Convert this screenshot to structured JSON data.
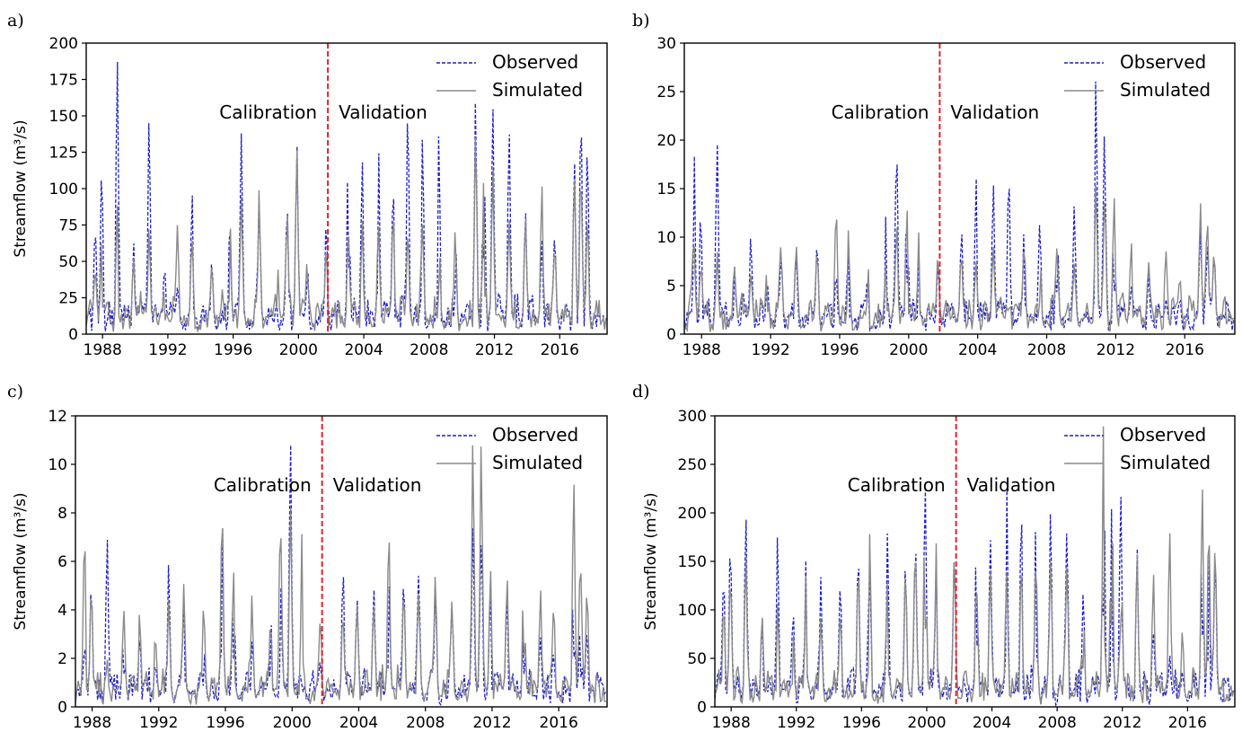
{
  "colors": {
    "observed": "#1f1fc8",
    "simulated": "#8a8a8a",
    "split_line": "#e8202a",
    "axis": "#000000"
  },
  "chart_data": [
    {
      "type": "line",
      "panel_label": "a)",
      "ylabel": "Streamflow (m³/s)",
      "xlim": [
        1987.0,
        2018.9
      ],
      "ylim": [
        0,
        200
      ],
      "yticks": [
        0,
        25,
        50,
        75,
        100,
        125,
        150,
        175,
        200
      ],
      "xticks": [
        1988,
        1992,
        1996,
        2000,
        2004,
        2008,
        2012,
        2016
      ],
      "split_year": 2001.8,
      "annotations": [
        "Calibration",
        "Validation"
      ],
      "legend_position": "top-right",
      "series": [
        {
          "name": "Observed",
          "style": "dashed",
          "color": "#1f1fc8",
          "peak_years": [
            1987.55,
            1987.95,
            1988.9,
            1989.9,
            1990.85,
            1991.8,
            1992.6,
            1993.5,
            1994.7,
            1995.8,
            1996.5,
            1997.6,
            1998.7,
            1999.3,
            1999.9,
            2000.6,
            2001.7,
            2003.05,
            2003.9,
            2004.9,
            2005.8,
            2006.7,
            2007.6,
            2008.6,
            2009.6,
            2010.85,
            2011.35,
            2011.9,
            2012.9,
            2013.9,
            2014.9,
            2015.7,
            2016.9,
            2017.3,
            2017.7
          ],
          "peak_values": [
            66,
            109,
            181,
            55,
            145,
            40,
            28,
            80,
            38,
            70,
            128,
            82,
            20,
            66,
            121,
            30,
            70,
            124,
            113,
            120,
            98,
            146,
            122,
            123,
            71,
            153,
            126,
            155,
            136,
            80,
            56,
            55,
            115,
            143,
            119
          ]
        },
        {
          "name": "Simulated",
          "style": "solid",
          "color": "#8a8a8a",
          "peak_years": [
            1987.55,
            1987.95,
            1988.9,
            1989.9,
            1990.85,
            1991.8,
            1992.6,
            1993.5,
            1994.7,
            1995.8,
            1996.5,
            1997.6,
            1998.7,
            1999.3,
            1999.9,
            2000.6,
            2001.7,
            2003.05,
            2003.9,
            2004.9,
            2005.8,
            2006.7,
            2007.6,
            2008.6,
            2009.6,
            2010.85,
            2011.35,
            2011.9,
            2012.9,
            2013.9,
            2014.9,
            2015.7,
            2016.9,
            2017.3,
            2017.7
          ],
          "peak_values": [
            30,
            58,
            82,
            42,
            65,
            24,
            57,
            48,
            40,
            70,
            76,
            83,
            50,
            68,
            123,
            85,
            55,
            68,
            70,
            72,
            75,
            68,
            70,
            72,
            60,
            135,
            95,
            110,
            70,
            75,
            93,
            55,
            105,
            100,
            70
          ]
        }
      ]
    },
    {
      "type": "line",
      "panel_label": "b)",
      "ylabel": "",
      "xlim": [
        1987.0,
        2018.9
      ],
      "ylim": [
        0,
        30
      ],
      "yticks": [
        0,
        5,
        10,
        15,
        20,
        25,
        30
      ],
      "xticks": [
        1988,
        1992,
        1996,
        2000,
        2004,
        2008,
        2012,
        2016
      ],
      "split_year": 2001.8,
      "annotations": [
        "Calibration",
        "Validation"
      ],
      "legend_position": "top-right",
      "series": [
        {
          "name": "Observed",
          "style": "dashed",
          "color": "#1f1fc8",
          "peak_years": [
            1987.55,
            1987.95,
            1988.9,
            1989.9,
            1990.85,
            1991.8,
            1992.6,
            1993.5,
            1994.7,
            1995.8,
            1996.5,
            1997.6,
            1998.7,
            1999.3,
            1999.9,
            2000.6,
            2001.7,
            2003.05,
            2003.9,
            2004.9,
            2005.8,
            2006.7,
            2007.6,
            2008.6,
            2009.6,
            2010.85,
            2011.35,
            2011.9,
            2012.9,
            2013.9,
            2014.9,
            2015.7,
            2016.9,
            2017.3,
            2017.7
          ],
          "peak_values": [
            17.8,
            11,
            19.2,
            6.5,
            8.8,
            4,
            6.5,
            5.2,
            7.5,
            5,
            5.5,
            4.5,
            12.6,
            16.7,
            14.5,
            8,
            5.5,
            8.5,
            14.8,
            14,
            15.2,
            9.5,
            9.7,
            11,
            11,
            25.8,
            18.5,
            12,
            4,
            5,
            3,
            2,
            9.5,
            6,
            7
          ]
        },
        {
          "name": "Simulated",
          "style": "solid",
          "color": "#8a8a8a",
          "peak_years": [
            1987.55,
            1987.95,
            1988.9,
            1989.9,
            1990.85,
            1991.8,
            1992.6,
            1993.5,
            1994.7,
            1995.8,
            1996.5,
            1997.6,
            1998.7,
            1999.3,
            1999.9,
            2000.6,
            2001.7,
            2003.05,
            2003.9,
            2004.9,
            2005.8,
            2006.7,
            2007.6,
            2008.6,
            2009.6,
            2010.85,
            2011.35,
            2011.9,
            2012.9,
            2013.9,
            2014.9,
            2015.7,
            2016.9,
            2017.3,
            2017.7
          ],
          "peak_values": [
            8,
            6,
            7,
            6,
            5.5,
            5.8,
            7,
            6.2,
            7.5,
            11.7,
            9.2,
            7.5,
            7,
            10,
            11.5,
            8,
            7,
            7.5,
            7,
            8,
            7.5,
            8,
            7,
            7.5,
            6,
            14.5,
            12,
            13,
            9,
            7,
            8,
            5,
            12.3,
            8.5,
            8
          ]
        }
      ]
    },
    {
      "type": "line",
      "panel_label": "c)",
      "ylabel": "Streamflow (m³/s)",
      "xlim": [
        1987.0,
        2018.9
      ],
      "ylim": [
        0,
        12
      ],
      "yticks": [
        0,
        2,
        4,
        6,
        8,
        10,
        12
      ],
      "xticks": [
        1988,
        1992,
        1996,
        2000,
        2004,
        2008,
        2012,
        2016
      ],
      "split_year": 2001.8,
      "annotations": [
        "Calibration",
        "Validation"
      ],
      "legend_position": "top-right",
      "series": [
        {
          "name": "Observed",
          "style": "dashed",
          "color": "#1f1fc8",
          "peak_years": [
            1987.55,
            1987.95,
            1988.9,
            1989.9,
            1990.85,
            1991.8,
            1992.6,
            1993.5,
            1994.7,
            1995.8,
            1996.5,
            1997.6,
            1998.7,
            1999.3,
            1999.9,
            2000.6,
            2001.7,
            2003.05,
            2003.9,
            2004.9,
            2005.8,
            2006.7,
            2007.6,
            2008.6,
            2009.6,
            2010.85,
            2011.35,
            2011.9,
            2012.9,
            2013.9,
            2014.9,
            2015.7,
            2016.9,
            2017.3,
            2017.7
          ],
          "peak_values": [
            1.5,
            4.8,
            6.5,
            3.5,
            2.5,
            1.5,
            4.7,
            3.5,
            2.5,
            7.8,
            5.1,
            2,
            3.5,
            4,
            10.4,
            2,
            1.5,
            4.8,
            4.2,
            4.5,
            5.2,
            4.8,
            5,
            4.3,
            3.5,
            6.9,
            5.8,
            4.5,
            4.1,
            3.5,
            2.5,
            1.8,
            5.5,
            3,
            2.5
          ]
        },
        {
          "name": "Simulated",
          "style": "solid",
          "color": "#8a8a8a",
          "peak_years": [
            1987.55,
            1987.95,
            1988.9,
            1989.9,
            1990.85,
            1991.8,
            1992.6,
            1993.5,
            1994.7,
            1995.8,
            1996.5,
            1997.6,
            1998.7,
            1999.3,
            1999.9,
            2000.6,
            2001.7,
            2003.05,
            2003.9,
            2004.9,
            2005.8,
            2006.7,
            2007.6,
            2008.6,
            2009.6,
            2010.85,
            2011.35,
            2011.9,
            2012.9,
            2013.9,
            2014.9,
            2015.7,
            2016.9,
            2017.3,
            2017.7
          ],
          "peak_values": [
            6.3,
            4.5,
            5.3,
            3.4,
            3.3,
            2.6,
            3.5,
            3.8,
            3.5,
            7.7,
            4.5,
            3.5,
            3,
            6.5,
            8,
            6.5,
            3,
            3.5,
            3.8,
            4,
            6.9,
            4.5,
            4,
            4.5,
            3.5,
            10.8,
            9.7,
            5.5,
            5,
            5.5,
            4.5,
            3.5,
            8.9,
            5.3,
            4.3
          ]
        }
      ]
    },
    {
      "type": "line",
      "panel_label": "d)",
      "ylabel": "Streamflow (m³/s)",
      "xlim": [
        1987.0,
        2018.9
      ],
      "ylim": [
        0,
        300
      ],
      "yticks": [
        0,
        50,
        100,
        150,
        200,
        250,
        300
      ],
      "xticks": [
        1988,
        1992,
        1996,
        2000,
        2004,
        2008,
        2012,
        2016
      ],
      "split_year": 2001.8,
      "annotations": [
        "Calibration",
        "Validation"
      ],
      "legend_position": "top-right",
      "series": [
        {
          "name": "Observed",
          "style": "dashed",
          "color": "#1f1fc8",
          "peak_years": [
            1987.55,
            1987.95,
            1988.9,
            1989.9,
            1990.85,
            1991.8,
            1992.6,
            1993.5,
            1994.7,
            1995.8,
            1996.5,
            1997.6,
            1998.7,
            1999.3,
            1999.9,
            2000.6,
            2001.7,
            2003.05,
            2003.9,
            2004.9,
            2005.8,
            2006.7,
            2007.6,
            2008.6,
            2009.6,
            2010.85,
            2011.35,
            2011.9,
            2012.9,
            2013.9,
            2014.9,
            2015.7,
            2016.9,
            2017.3,
            2017.7
          ],
          "peak_values": [
            120,
            158,
            192,
            88,
            165,
            90,
            130,
            100,
            118,
            150,
            120,
            155,
            130,
            150,
            220,
            130,
            148,
            172,
            165,
            215,
            195,
            180,
            178,
            160,
            105,
            265,
            200,
            215,
            150,
            70,
            40,
            25,
            205,
            160,
            140
          ]
        },
        {
          "name": "Simulated",
          "style": "solid",
          "color": "#8a8a8a",
          "peak_years": [
            1987.55,
            1987.95,
            1988.9,
            1989.9,
            1990.85,
            1991.8,
            1992.6,
            1993.5,
            1994.7,
            1995.8,
            1996.5,
            1997.6,
            1998.7,
            1999.3,
            1999.9,
            2000.6,
            2001.7,
            2003.05,
            2003.9,
            2004.9,
            2005.8,
            2006.7,
            2007.6,
            2008.6,
            2009.6,
            2010.85,
            2011.35,
            2011.9,
            2012.9,
            2013.9,
            2014.9,
            2015.7,
            2016.9,
            2017.3,
            2017.7
          ],
          "peak_values": [
            80,
            120,
            145,
            85,
            100,
            70,
            120,
            80,
            80,
            135,
            165,
            120,
            130,
            145,
            220,
            160,
            140,
            120,
            130,
            130,
            140,
            150,
            140,
            130,
            100,
            283,
            230,
            260,
            150,
            130,
            170,
            65,
            220,
            170,
            160
          ]
        }
      ]
    }
  ]
}
